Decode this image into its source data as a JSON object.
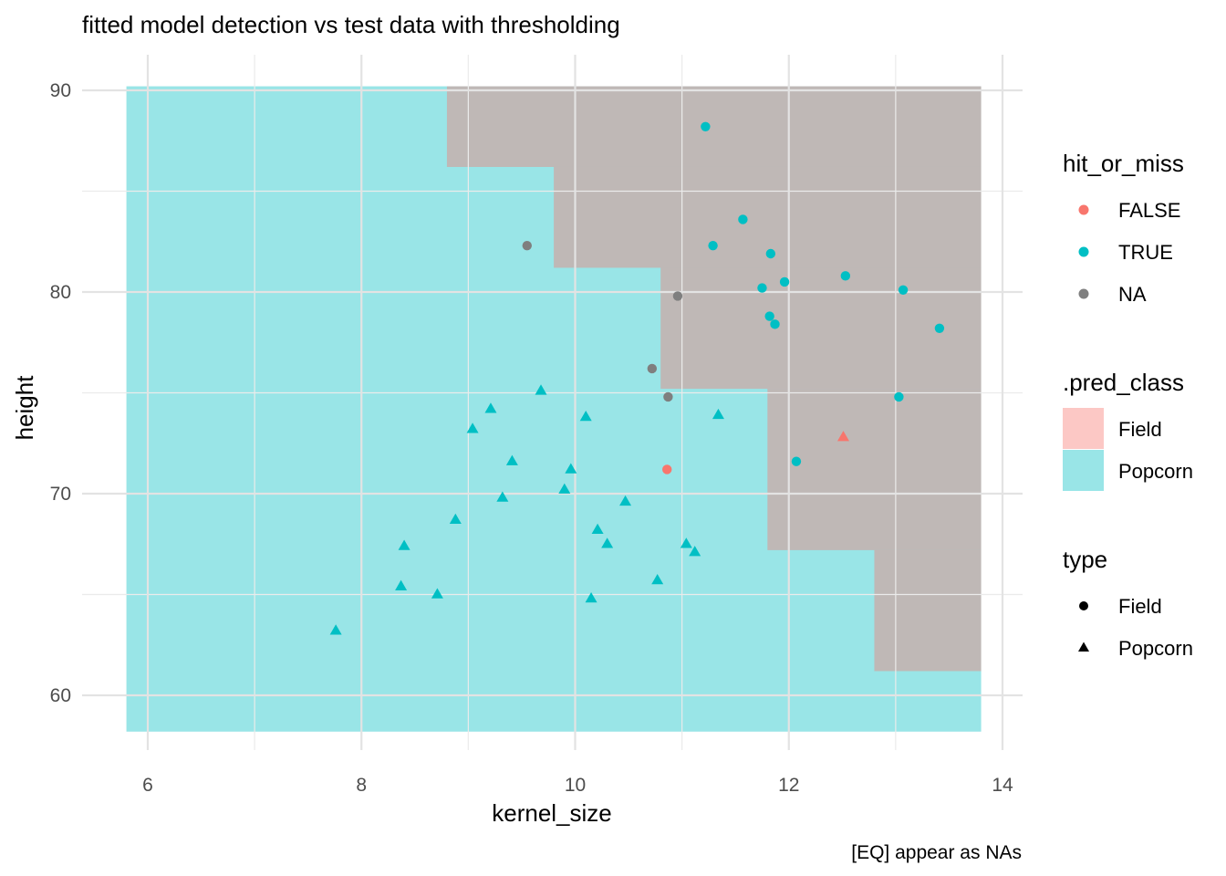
{
  "chart_data": {
    "type": "scatter",
    "title": "fitted model detection vs test data with thresholding",
    "xlabel": "kernel_size",
    "ylabel": "height",
    "caption": "[EQ] appear as NAs",
    "xlim": [
      5.8,
      14.1
    ],
    "ylim": [
      58.2,
      90.2
    ],
    "x_ticks": [
      6,
      8,
      10,
      12,
      14
    ],
    "y_ticks": [
      60,
      70,
      80,
      90
    ],
    "grid": true,
    "legend_position": "right",
    "colors": {
      "FALSE": "#F8766D",
      "TRUE": "#00BFC4",
      "NA": "#7F7F7F",
      "Field_fill": "#F8766D",
      "Popcorn_fill": "#00BFC4"
    },
    "regions": [
      {
        "class": "Popcorn",
        "x0": 5.8,
        "x1": 13.8,
        "y0": 58.2,
        "y1": 90.2
      },
      {
        "class": "Field",
        "x0": 8.8,
        "x1": 13.8,
        "y0": 86.2,
        "y1": 90.2
      },
      {
        "class": "Field",
        "x0": 9.8,
        "x1": 13.8,
        "y0": 81.2,
        "y1": 86.2
      },
      {
        "class": "Field",
        "x0": 10.8,
        "x1": 13.8,
        "y0": 75.2,
        "y1": 81.2
      },
      {
        "class": "Field",
        "x0": 11.8,
        "x1": 13.8,
        "y0": 67.2,
        "y1": 75.2
      },
      {
        "class": "Field",
        "x0": 12.8,
        "x1": 13.8,
        "y0": 61.2,
        "y1": 67.2
      }
    ],
    "points": [
      {
        "x": 11.22,
        "y": 88.2,
        "type": "Field",
        "hit": "TRUE"
      },
      {
        "x": 11.57,
        "y": 83.6,
        "type": "Field",
        "hit": "TRUE"
      },
      {
        "x": 11.29,
        "y": 82.3,
        "type": "Field",
        "hit": "TRUE"
      },
      {
        "x": 11.83,
        "y": 81.9,
        "type": "Field",
        "hit": "TRUE"
      },
      {
        "x": 12.53,
        "y": 80.8,
        "type": "Field",
        "hit": "TRUE"
      },
      {
        "x": 11.96,
        "y": 80.5,
        "type": "Field",
        "hit": "TRUE"
      },
      {
        "x": 11.75,
        "y": 80.2,
        "type": "Field",
        "hit": "TRUE"
      },
      {
        "x": 13.07,
        "y": 80.1,
        "type": "Field",
        "hit": "TRUE"
      },
      {
        "x": 11.82,
        "y": 78.8,
        "type": "Field",
        "hit": "TRUE"
      },
      {
        "x": 11.87,
        "y": 78.4,
        "type": "Field",
        "hit": "TRUE"
      },
      {
        "x": 13.41,
        "y": 78.2,
        "type": "Field",
        "hit": "TRUE"
      },
      {
        "x": 13.03,
        "y": 74.8,
        "type": "Field",
        "hit": "TRUE"
      },
      {
        "x": 12.07,
        "y": 71.6,
        "type": "Field",
        "hit": "TRUE"
      },
      {
        "x": 10.86,
        "y": 71.2,
        "type": "Field",
        "hit": "FALSE"
      },
      {
        "x": 9.55,
        "y": 82.3,
        "type": "Field",
        "hit": "NA"
      },
      {
        "x": 10.96,
        "y": 79.8,
        "type": "Field",
        "hit": "NA"
      },
      {
        "x": 10.72,
        "y": 76.2,
        "type": "Field",
        "hit": "NA"
      },
      {
        "x": 10.87,
        "y": 74.8,
        "type": "Field",
        "hit": "NA"
      },
      {
        "x": 12.51,
        "y": 72.8,
        "type": "Popcorn",
        "hit": "FALSE"
      },
      {
        "x": 9.68,
        "y": 75.1,
        "type": "Popcorn",
        "hit": "TRUE"
      },
      {
        "x": 9.21,
        "y": 74.2,
        "type": "Popcorn",
        "hit": "TRUE"
      },
      {
        "x": 11.34,
        "y": 73.9,
        "type": "Popcorn",
        "hit": "TRUE"
      },
      {
        "x": 10.1,
        "y": 73.8,
        "type": "Popcorn",
        "hit": "TRUE"
      },
      {
        "x": 9.04,
        "y": 73.2,
        "type": "Popcorn",
        "hit": "TRUE"
      },
      {
        "x": 9.41,
        "y": 71.6,
        "type": "Popcorn",
        "hit": "TRUE"
      },
      {
        "x": 9.96,
        "y": 71.2,
        "type": "Popcorn",
        "hit": "TRUE"
      },
      {
        "x": 9.9,
        "y": 70.2,
        "type": "Popcorn",
        "hit": "TRUE"
      },
      {
        "x": 9.32,
        "y": 69.8,
        "type": "Popcorn",
        "hit": "TRUE"
      },
      {
        "x": 10.47,
        "y": 69.6,
        "type": "Popcorn",
        "hit": "TRUE"
      },
      {
        "x": 8.88,
        "y": 68.7,
        "type": "Popcorn",
        "hit": "TRUE"
      },
      {
        "x": 10.21,
        "y": 68.2,
        "type": "Popcorn",
        "hit": "TRUE"
      },
      {
        "x": 10.3,
        "y": 67.5,
        "type": "Popcorn",
        "hit": "TRUE"
      },
      {
        "x": 8.4,
        "y": 67.4,
        "type": "Popcorn",
        "hit": "TRUE"
      },
      {
        "x": 11.04,
        "y": 67.5,
        "type": "Popcorn",
        "hit": "TRUE"
      },
      {
        "x": 11.12,
        "y": 67.1,
        "type": "Popcorn",
        "hit": "TRUE"
      },
      {
        "x": 10.77,
        "y": 65.7,
        "type": "Popcorn",
        "hit": "TRUE"
      },
      {
        "x": 8.37,
        "y": 65.4,
        "type": "Popcorn",
        "hit": "TRUE"
      },
      {
        "x": 8.71,
        "y": 65.0,
        "type": "Popcorn",
        "hit": "TRUE"
      },
      {
        "x": 10.15,
        "y": 64.8,
        "type": "Popcorn",
        "hit": "TRUE"
      },
      {
        "x": 7.76,
        "y": 63.2,
        "type": "Popcorn",
        "hit": "TRUE"
      }
    ],
    "legends": [
      {
        "title": "hit_or_miss",
        "kind": "color",
        "items": [
          {
            "label": "FALSE",
            "color": "#F8766D"
          },
          {
            "label": "TRUE",
            "color": "#00BFC4"
          },
          {
            "label": "NA",
            "color": "#7F7F7F"
          }
        ]
      },
      {
        "title": ".pred_class",
        "kind": "fill",
        "items": [
          {
            "label": "Field",
            "color": "#F8766D"
          },
          {
            "label": "Popcorn",
            "color": "#00BFC4"
          }
        ]
      },
      {
        "title": "type",
        "kind": "shape",
        "items": [
          {
            "label": "Field",
            "shape": "circle"
          },
          {
            "label": "Popcorn",
            "shape": "triangle"
          }
        ]
      }
    ]
  }
}
